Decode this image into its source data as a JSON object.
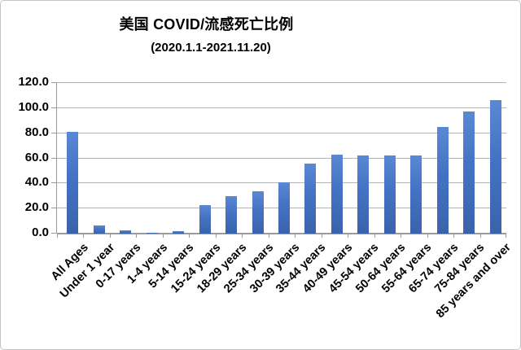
{
  "chart_data": {
    "type": "bar",
    "title": "美国 COVID/流感死亡比例",
    "subtitle": "(2020.1.1-2021.11.20)",
    "categories": [
      "All Ages",
      "Under 1 year",
      "0-17 years",
      "1-4 years",
      "5-14 years",
      "15-24 years",
      "18-29 years",
      "25-34 years",
      "30-39 years",
      "35-44 years",
      "40-49 years",
      "45-54 years",
      "50-64 years",
      "55-64 years",
      "65-74 years",
      "75-84 years",
      "85 years and over"
    ],
    "values": [
      81.4,
      6.3,
      2.8,
      0.6,
      1.9,
      23.0,
      30.0,
      33.8,
      41.0,
      55.6,
      63.0,
      62.2,
      62.5,
      62.6,
      84.7,
      97.0,
      106.4
    ],
    "xlabel": "",
    "ylabel": "",
    "ylim": [
      0,
      120
    ],
    "ytick_labels": [
      "0.0",
      "20.0",
      "40.0",
      "60.0",
      "80.0",
      "100.0",
      "120.0"
    ],
    "grid": true,
    "legend": false,
    "colors": {
      "bar_mid": "#4472c4",
      "bar_light": "#5b88d3",
      "bar_dark": "#3a63ab",
      "gridline": "#b3b3b3",
      "axis": "#9a9a9a",
      "text": "#000000",
      "background": "#ffffff",
      "frame_border": "#c4c4c4"
    }
  }
}
